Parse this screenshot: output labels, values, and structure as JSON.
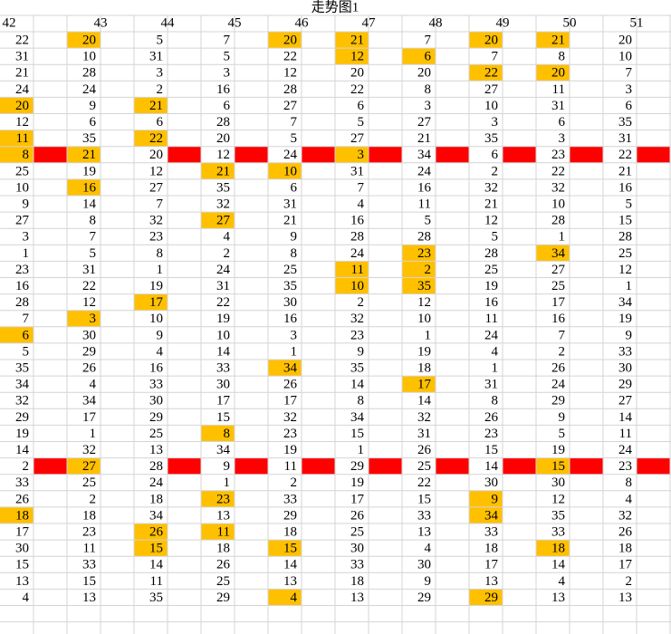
{
  "title": "走势图1",
  "headers": [
    42,
    43,
    44,
    45,
    46,
    47,
    48,
    49,
    50,
    51
  ],
  "colors": {
    "highlight": "#ffc000",
    "marker": "#ff0000"
  },
  "rows": [
    {
      "values": [
        22,
        20,
        5,
        7,
        20,
        21,
        7,
        20,
        21,
        20
      ],
      "highlight": [
        1,
        4,
        5,
        7,
        8
      ]
    },
    {
      "values": [
        31,
        10,
        31,
        5,
        22,
        12,
        6,
        7,
        8,
        10
      ],
      "highlight": [
        5,
        6
      ]
    },
    {
      "values": [
        21,
        28,
        3,
        3,
        12,
        20,
        20,
        22,
        20,
        7
      ],
      "highlight": [
        7,
        8
      ]
    },
    {
      "values": [
        24,
        24,
        2,
        16,
        28,
        22,
        8,
        27,
        11,
        3
      ],
      "highlight": []
    },
    {
      "values": [
        20,
        9,
        21,
        6,
        27,
        6,
        3,
        10,
        31,
        6
      ],
      "highlight": [
        0,
        2
      ]
    },
    {
      "values": [
        12,
        6,
        6,
        28,
        7,
        5,
        27,
        3,
        6,
        35
      ],
      "highlight": []
    },
    {
      "values": [
        11,
        35,
        22,
        20,
        5,
        27,
        21,
        35,
        3,
        31
      ],
      "highlight": [
        0,
        2
      ]
    },
    {
      "values": [
        8,
        21,
        20,
        12,
        24,
        3,
        34,
        6,
        23,
        22
      ],
      "highlight": [
        0,
        1,
        5
      ],
      "marked": true
    },
    {
      "values": [
        25,
        19,
        12,
        21,
        10,
        31,
        24,
        2,
        22,
        21
      ],
      "highlight": [
        3,
        4
      ]
    },
    {
      "values": [
        10,
        16,
        27,
        35,
        6,
        7,
        16,
        32,
        32,
        16
      ],
      "highlight": [
        1
      ]
    },
    {
      "values": [
        9,
        14,
        7,
        32,
        31,
        4,
        11,
        21,
        10,
        5
      ],
      "highlight": []
    },
    {
      "values": [
        27,
        8,
        32,
        27,
        21,
        16,
        5,
        12,
        28,
        15
      ],
      "highlight": [
        3
      ]
    },
    {
      "values": [
        3,
        7,
        23,
        4,
        9,
        28,
        28,
        5,
        1,
        28
      ],
      "highlight": []
    },
    {
      "values": [
        1,
        5,
        8,
        2,
        8,
        24,
        23,
        28,
        34,
        25
      ],
      "highlight": [
        6,
        8
      ]
    },
    {
      "values": [
        23,
        31,
        1,
        24,
        25,
        11,
        2,
        25,
        27,
        12
      ],
      "highlight": [
        5,
        6
      ]
    },
    {
      "values": [
        16,
        22,
        19,
        31,
        35,
        10,
        35,
        19,
        25,
        1
      ],
      "highlight": [
        5,
        6
      ]
    },
    {
      "values": [
        28,
        12,
        17,
        22,
        30,
        2,
        12,
        16,
        17,
        34
      ],
      "highlight": [
        2
      ]
    },
    {
      "values": [
        7,
        3,
        10,
        19,
        16,
        32,
        10,
        11,
        16,
        19
      ],
      "highlight": [
        1
      ]
    },
    {
      "values": [
        6,
        30,
        9,
        10,
        3,
        23,
        1,
        24,
        7,
        9
      ],
      "highlight": [
        0
      ]
    },
    {
      "values": [
        5,
        29,
        4,
        14,
        1,
        9,
        19,
        4,
        2,
        33
      ],
      "highlight": []
    },
    {
      "values": [
        35,
        26,
        16,
        33,
        34,
        35,
        18,
        1,
        26,
        30
      ],
      "highlight": [
        4
      ]
    },
    {
      "values": [
        34,
        4,
        33,
        30,
        26,
        14,
        17,
        31,
        24,
        29
      ],
      "highlight": [
        6
      ]
    },
    {
      "values": [
        32,
        34,
        30,
        17,
        17,
        8,
        14,
        8,
        29,
        27
      ],
      "highlight": []
    },
    {
      "values": [
        29,
        17,
        29,
        15,
        32,
        34,
        32,
        26,
        9,
        14
      ],
      "highlight": []
    },
    {
      "values": [
        19,
        1,
        25,
        8,
        23,
        15,
        31,
        23,
        5,
        11
      ],
      "highlight": [
        3
      ]
    },
    {
      "values": [
        14,
        32,
        13,
        34,
        19,
        1,
        26,
        15,
        19,
        24
      ],
      "highlight": []
    },
    {
      "values": [
        2,
        27,
        28,
        9,
        11,
        29,
        25,
        14,
        15,
        23
      ],
      "highlight": [
        1,
        8
      ],
      "marked": true
    },
    {
      "values": [
        33,
        25,
        24,
        1,
        2,
        19,
        22,
        30,
        30,
        8
      ],
      "highlight": []
    },
    {
      "values": [
        26,
        2,
        18,
        23,
        33,
        17,
        15,
        9,
        12,
        4
      ],
      "highlight": [
        3,
        7
      ]
    },
    {
      "values": [
        18,
        18,
        34,
        13,
        29,
        26,
        33,
        34,
        35,
        32
      ],
      "highlight": [
        0,
        7
      ]
    },
    {
      "values": [
        17,
        23,
        26,
        11,
        18,
        25,
        13,
        33,
        33,
        26
      ],
      "highlight": [
        2,
        3
      ]
    },
    {
      "values": [
        30,
        11,
        15,
        18,
        15,
        30,
        4,
        18,
        18,
        18
      ],
      "highlight": [
        2,
        4,
        8
      ]
    },
    {
      "values": [
        15,
        33,
        14,
        26,
        14,
        33,
        30,
        17,
        14,
        17
      ],
      "highlight": []
    },
    {
      "values": [
        13,
        15,
        11,
        25,
        13,
        18,
        9,
        13,
        4,
        2
      ],
      "highlight": []
    },
    {
      "values": [
        4,
        13,
        35,
        29,
        4,
        13,
        29,
        29,
        13,
        13
      ],
      "highlight": [
        4,
        7
      ]
    }
  ]
}
